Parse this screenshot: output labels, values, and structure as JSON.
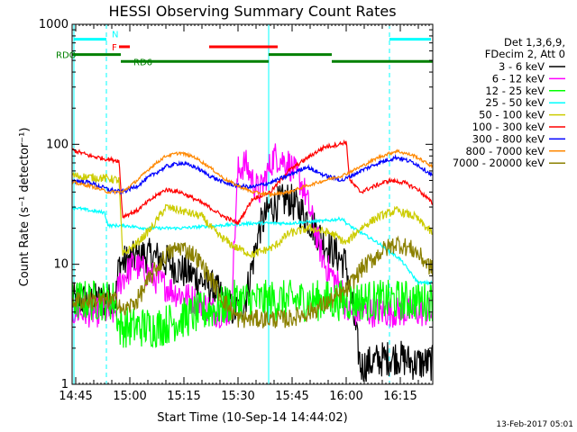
{
  "chart_data": {
    "type": "line",
    "title": "HESSI Observing Summary Count Rates",
    "xlabel": "Start Time (10-Sep-14 14:44:02)",
    "ylabel": "Count Rate (s⁻¹ detector⁻¹)",
    "xlim_minutes": [
      0,
      100
    ],
    "ylim": [
      1,
      1000
    ],
    "yscale": "log",
    "x_ticks": [
      {
        "label": "14:45",
        "minute": 1
      },
      {
        "label": "15:00",
        "minute": 16
      },
      {
        "label": "15:15",
        "minute": 31
      },
      {
        "label": "15:30",
        "minute": 46
      },
      {
        "label": "15:45",
        "minute": 61
      },
      {
        "label": "16:00",
        "minute": 76
      },
      {
        "label": "16:15",
        "minute": 91
      }
    ],
    "y_ticks": [
      {
        "label": "1",
        "value": 1
      },
      {
        "label": "10",
        "value": 10
      },
      {
        "label": "100",
        "value": 100
      },
      {
        "label": "1000",
        "value": 1000
      }
    ],
    "legend_header": [
      "Det 1,3,6,9,",
      "FDecim 2, Att 0"
    ],
    "legend_placement": "right",
    "footer_date": "13-Feb-2017 05:01",
    "day_night_boundaries": [
      0.5,
      9.5,
      54.5,
      88
    ],
    "series": [
      {
        "name": "3 - 6 keV",
        "color": "#000000",
        "noise": 0.35,
        "x": [
          0,
          12,
          13,
          20,
          25,
          30,
          34,
          40,
          45,
          48,
          52,
          55,
          60,
          65,
          70,
          76,
          80,
          85,
          90,
          95,
          100
        ],
        "y": [
          5,
          5,
          10,
          12,
          11,
          9,
          8,
          6,
          4,
          5,
          20,
          30,
          35,
          25,
          15,
          10,
          1.4,
          1.6,
          1.7,
          1.5,
          1.5
        ]
      },
      {
        "name": "6 - 12 keV",
        "color": "#ff00ff",
        "noise": 0.3,
        "x": [
          0,
          12,
          13,
          17,
          22,
          28,
          34,
          40,
          44,
          46,
          48,
          50,
          52,
          56,
          60,
          64,
          70,
          75,
          76,
          80,
          86,
          92,
          97,
          100
        ],
        "y": [
          4,
          4,
          7,
          10,
          8,
          6,
          5,
          4,
          4,
          60,
          70,
          50,
          40,
          80,
          70,
          45,
          10,
          6,
          4,
          4,
          4,
          4,
          4,
          4
        ]
      },
      {
        "name": "12 - 25 keV",
        "color": "#00ff00",
        "noise": 0.4,
        "x": [
          0,
          12,
          13,
          18,
          24,
          30,
          36,
          42,
          45,
          50,
          55,
          60,
          66,
          72,
          76,
          80,
          88,
          95,
          100
        ],
        "y": [
          5,
          5,
          3,
          3,
          3,
          3.5,
          4,
          4.5,
          5,
          5,
          5,
          5,
          5,
          5,
          5,
          5,
          5,
          5,
          5
        ]
      },
      {
        "name": "25 - 50 keV",
        "color": "#00ffff",
        "noise": 0.03,
        "x": [
          0,
          5,
          9,
          10,
          15,
          20,
          30,
          40,
          50,
          60,
          70,
          75,
          76,
          78,
          85,
          91,
          96,
          100
        ],
        "y": [
          30,
          28,
          27,
          21,
          21,
          20,
          20,
          21,
          22,
          22,
          23,
          24,
          22,
          20,
          15,
          11,
          7,
          7
        ]
      },
      {
        "name": "50 - 100 keV",
        "color": "#cccc00",
        "noise": 0.08,
        "x": [
          0,
          5,
          10,
          13,
          14,
          18,
          22,
          26,
          30,
          36,
          40,
          45,
          50,
          56,
          60,
          66,
          72,
          76,
          80,
          85,
          90,
          95,
          100
        ],
        "y": [
          55,
          53,
          52,
          50,
          12,
          15,
          20,
          30,
          28,
          25,
          18,
          14,
          12,
          14,
          18,
          20,
          18,
          15,
          20,
          25,
          28,
          25,
          18
        ]
      },
      {
        "name": "100 - 300 keV",
        "color": "#ff0000",
        "noise": 0.04,
        "x": [
          0,
          5,
          10,
          13,
          14,
          18,
          22,
          26,
          30,
          34,
          38,
          42,
          46,
          50,
          55,
          60,
          66,
          70,
          74,
          76,
          77,
          80,
          84,
          88,
          92,
          96,
          100
        ],
        "y": [
          90,
          80,
          75,
          73,
          25,
          28,
          35,
          42,
          40,
          35,
          30,
          25,
          22,
          35,
          40,
          60,
          80,
          95,
          100,
          105,
          50,
          40,
          45,
          50,
          48,
          42,
          32
        ]
      },
      {
        "name": "300 - 800 keV",
        "color": "#0000ff",
        "noise": 0.04,
        "x": [
          0,
          5,
          10,
          14,
          18,
          22,
          26,
          30,
          34,
          38,
          42,
          46,
          50,
          55,
          60,
          65,
          70,
          75,
          80,
          85,
          90,
          95,
          100
        ],
        "y": [
          50,
          48,
          42,
          40,
          45,
          55,
          65,
          70,
          65,
          55,
          48,
          45,
          44,
          48,
          55,
          65,
          55,
          50,
          60,
          70,
          78,
          70,
          55
        ]
      },
      {
        "name": "800 - 7000 keV",
        "color": "#ff8800",
        "noise": 0.03,
        "x": [
          0,
          5,
          10,
          14,
          18,
          22,
          26,
          30,
          34,
          38,
          42,
          46,
          50,
          55,
          60,
          65,
          70,
          75,
          80,
          85,
          90,
          95,
          100
        ],
        "y": [
          48,
          45,
          40,
          40,
          50,
          65,
          80,
          85,
          78,
          65,
          52,
          45,
          40,
          38,
          40,
          45,
          50,
          55,
          65,
          78,
          88,
          80,
          65
        ]
      },
      {
        "name": "7000 - 20000 keV",
        "color": "#8b8000",
        "noise": 0.18,
        "x": [
          0,
          5,
          10,
          13,
          14,
          18,
          22,
          26,
          30,
          34,
          38,
          42,
          46,
          50,
          55,
          60,
          66,
          72,
          76,
          80,
          86,
          90,
          95,
          100
        ],
        "y": [
          5,
          5,
          5,
          5,
          4,
          5,
          8,
          12,
          14,
          12,
          8,
          5,
          3.5,
          3.5,
          3.5,
          3.5,
          4,
          5,
          6,
          9,
          13,
          15,
          13,
          9
        ]
      }
    ],
    "state_bars": [
      {
        "label": "N",
        "color": "#00ffff",
        "y_value": 750,
        "label_color": "#00ffff",
        "segments": [
          [
            0.5,
            9.5
          ],
          [
            88,
            99.5
          ]
        ]
      },
      {
        "label": "F",
        "color": "#ff0000",
        "y_value": 650,
        "label_color": "#ff0000",
        "segments": [
          [
            13,
            16
          ],
          [
            38,
            57
          ]
        ]
      },
      {
        "label": "RDO",
        "color": "#008000",
        "y_value": 560,
        "label_color": "#008000",
        "segments": [
          [
            0,
            13.5
          ],
          [
            54.5,
            72
          ]
        ]
      },
      {
        "label": "RD6",
        "color": "#008000",
        "y_value": 490,
        "label_color": "#008000",
        "segments": [
          [
            13.5,
            54.5
          ],
          [
            72,
            100
          ]
        ]
      }
    ]
  }
}
